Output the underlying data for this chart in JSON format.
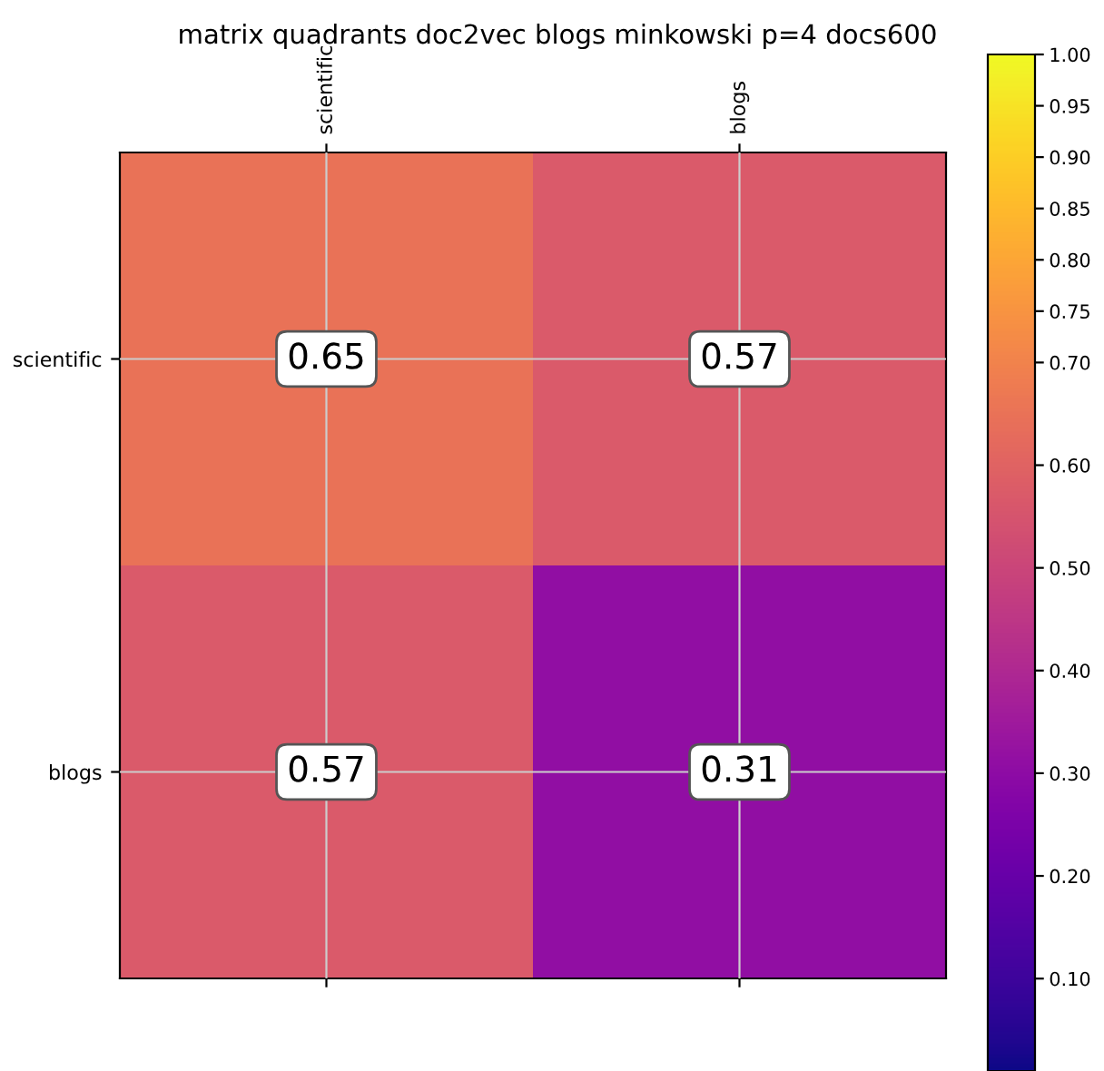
{
  "chart_data": {
    "type": "heatmap",
    "title": "matrix quadrants doc2vec blogs minkowski p=4 docs600",
    "categories": [
      "scientific",
      "blogs"
    ],
    "y_categories": [
      "scientific",
      "blogs"
    ],
    "cells": [
      [
        0.65,
        0.57
      ],
      [
        0.57,
        0.31
      ]
    ],
    "data_labels": true,
    "grid": true,
    "clim": [
      0.01,
      1.0
    ],
    "cticks": [
      {
        "value": 0.1,
        "label": "0.10"
      },
      {
        "value": 0.2,
        "label": "0.20"
      },
      {
        "value": 0.3,
        "label": "0.30"
      },
      {
        "value": 0.4,
        "label": "0.40"
      },
      {
        "value": 0.5,
        "label": "0.50"
      },
      {
        "value": 0.6,
        "label": "0.60"
      },
      {
        "value": 0.7,
        "label": "0.70"
      },
      {
        "value": 0.75,
        "label": "0.75"
      },
      {
        "value": 0.8,
        "label": "0.80"
      },
      {
        "value": 0.85,
        "label": "0.85"
      },
      {
        "value": 0.9,
        "label": "0.90"
      },
      {
        "value": 0.95,
        "label": "0.95"
      },
      {
        "value": 1.0,
        "label": "1.00"
      }
    ]
  }
}
